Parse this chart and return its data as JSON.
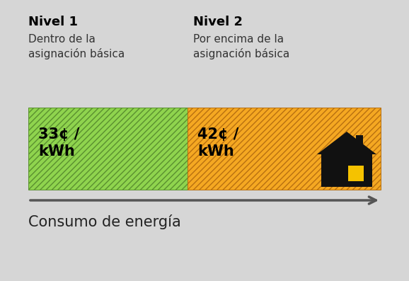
{
  "bg_color": "#d6d6d6",
  "tier1_color": "#8fd44e",
  "tier2_color": "#f5a822",
  "hatch_color1": "#5a9030",
  "hatch_color2": "#b87010",
  "tier1_label": "33¢ /\nkWh",
  "tier2_label": "42¢ /\nkWh",
  "nivel1_bold": "Nivel 1",
  "nivel1_sub": "Dentro de la\nasignación básica",
  "nivel2_bold": "Nivel 2",
  "nivel2_sub": "Por encima de la\nasignación básica",
  "xlabel": "Consumo de energía",
  "house_color": "#111111",
  "house_window_color": "#f5c200",
  "title_fontsize": 13,
  "sub_fontsize": 11,
  "label_fontsize": 15,
  "xlabel_fontsize": 15
}
